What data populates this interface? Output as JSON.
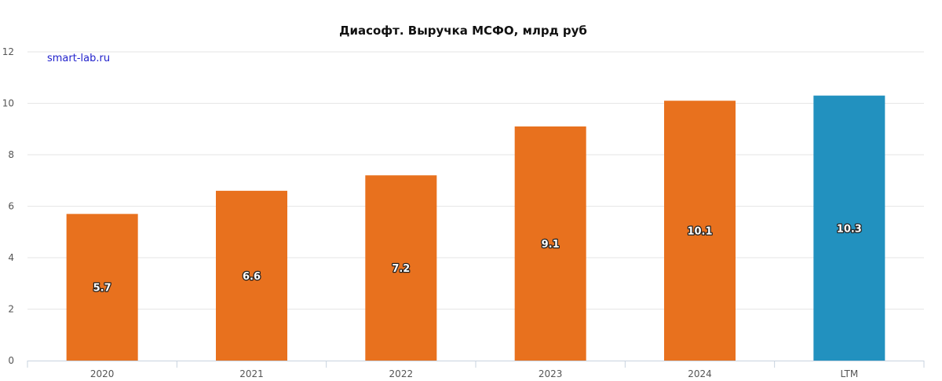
{
  "chart_data": {
    "type": "bar",
    "title": "Диасофт. Выручка МСФО, млрд руб",
    "watermark": "smart-lab.ru",
    "categories": [
      "2020",
      "2021",
      "2022",
      "2023",
      "2024",
      "LTM"
    ],
    "values": [
      5.7,
      6.6,
      7.2,
      9.1,
      10.1,
      10.3
    ],
    "data_labels": [
      "5.7",
      "6.6",
      "7.2",
      "9.1",
      "10.1",
      "10.3"
    ],
    "bar_colors": [
      "#e8711e",
      "#e8711e",
      "#e8711e",
      "#e8711e",
      "#e8711e",
      "#2291bf"
    ],
    "ylim": [
      0,
      12
    ],
    "yticks": [
      0,
      2,
      4,
      6,
      8,
      10,
      12
    ],
    "grid": true,
    "xlabel": "",
    "ylabel": ""
  }
}
